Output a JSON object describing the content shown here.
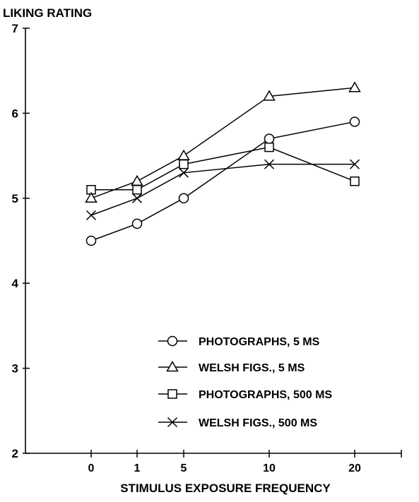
{
  "chart_data": {
    "type": "line",
    "ylabel": "LIKING RATING",
    "xlabel": "STIMULUS EXPOSURE FREQUENCY",
    "categories": [
      "0",
      "1",
      "5",
      "10",
      "20"
    ],
    "yticks": [
      "2",
      "3",
      "4",
      "5",
      "6",
      "7"
    ],
    "ylim": [
      2,
      7
    ],
    "grid": false,
    "legend_position": "bottom-right",
    "series": [
      {
        "name": "PHOTOGRAPHS, 5 MS",
        "marker": "circle",
        "values": [
          4.5,
          4.7,
          5.0,
          5.7,
          5.9
        ]
      },
      {
        "name": "WELSH FIGS., 5 MS",
        "marker": "triangle",
        "values": [
          5.0,
          5.2,
          5.5,
          6.2,
          6.3
        ]
      },
      {
        "name": "PHOTOGRAPHS, 500 MS",
        "marker": "square",
        "values": [
          5.1,
          5.1,
          5.4,
          5.6,
          5.2
        ]
      },
      {
        "name": "WELSH FIGS., 500 MS",
        "marker": "cross",
        "values": [
          4.8,
          5.0,
          5.3,
          5.4,
          5.4
        ]
      }
    ],
    "colors": {
      "line": "#000000",
      "background": "#ffffff"
    }
  }
}
